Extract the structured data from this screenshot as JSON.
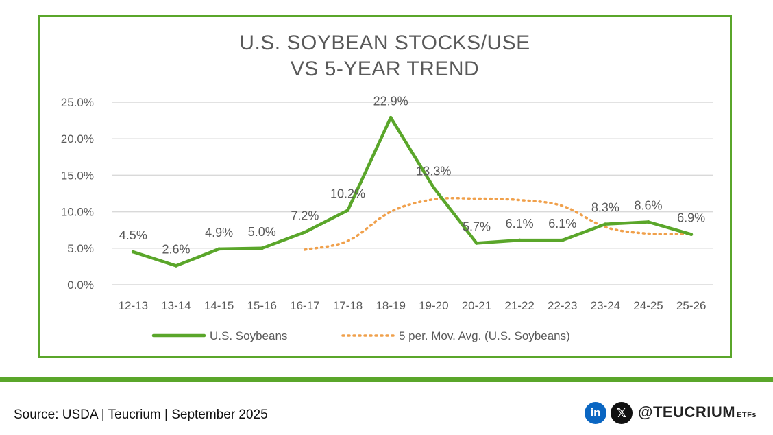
{
  "chart_data": {
    "type": "line",
    "title": [
      "U.S. SOYBEAN STOCKS/USE",
      "VS 5-YEAR TREND"
    ],
    "categories": [
      "12-13",
      "13-14",
      "14-15",
      "15-16",
      "16-17",
      "17-18",
      "18-19",
      "19-20",
      "20-21",
      "21-22",
      "22-23",
      "23-24",
      "24-25",
      "25-26"
    ],
    "ylim": [
      0,
      25
    ],
    "yticks": [
      "0.0%",
      "5.0%",
      "10.0%",
      "15.0%",
      "20.0%",
      "25.0%"
    ],
    "ytick_values": [
      0,
      5,
      10,
      15,
      20,
      25
    ],
    "grid": true,
    "legend_position": "bottom",
    "series": [
      {
        "name": "U.S. Soybeans",
        "style": "solid",
        "color": "#5aa62a",
        "values": [
          4.5,
          2.6,
          4.9,
          5.0,
          7.2,
          10.2,
          22.9,
          13.3,
          5.7,
          6.1,
          6.1,
          8.3,
          8.6,
          6.9
        ],
        "labels": [
          "4.5%",
          "2.6%",
          "4.9%",
          "5.0%",
          "7.2%",
          "10.2%",
          "22.9%",
          "13.3%",
          "5.7%",
          "6.1%",
          "6.1%",
          "8.3%",
          "8.6%",
          "6.9%"
        ]
      },
      {
        "name": "5 per. Mov. Avg. (U.S. Soybeans)",
        "style": "dotted",
        "color": "#f0a04b",
        "values": [
          null,
          null,
          null,
          null,
          4.8,
          6.0,
          10.0,
          11.7,
          11.8,
          11.6,
          10.8,
          7.9,
          7.0,
          7.0
        ]
      }
    ]
  },
  "footer": {
    "source": "Source: USDA | Teucrium | September 2025",
    "handle": "@TEUCRIUM",
    "handle_suffix": "ETFs",
    "linkedin_glyph": "in",
    "x_glyph": "𝕏"
  },
  "colors": {
    "accent": "#5aa62a",
    "trend": "#f0a04b",
    "text": "#595959",
    "grid": "#d9d9d9"
  }
}
